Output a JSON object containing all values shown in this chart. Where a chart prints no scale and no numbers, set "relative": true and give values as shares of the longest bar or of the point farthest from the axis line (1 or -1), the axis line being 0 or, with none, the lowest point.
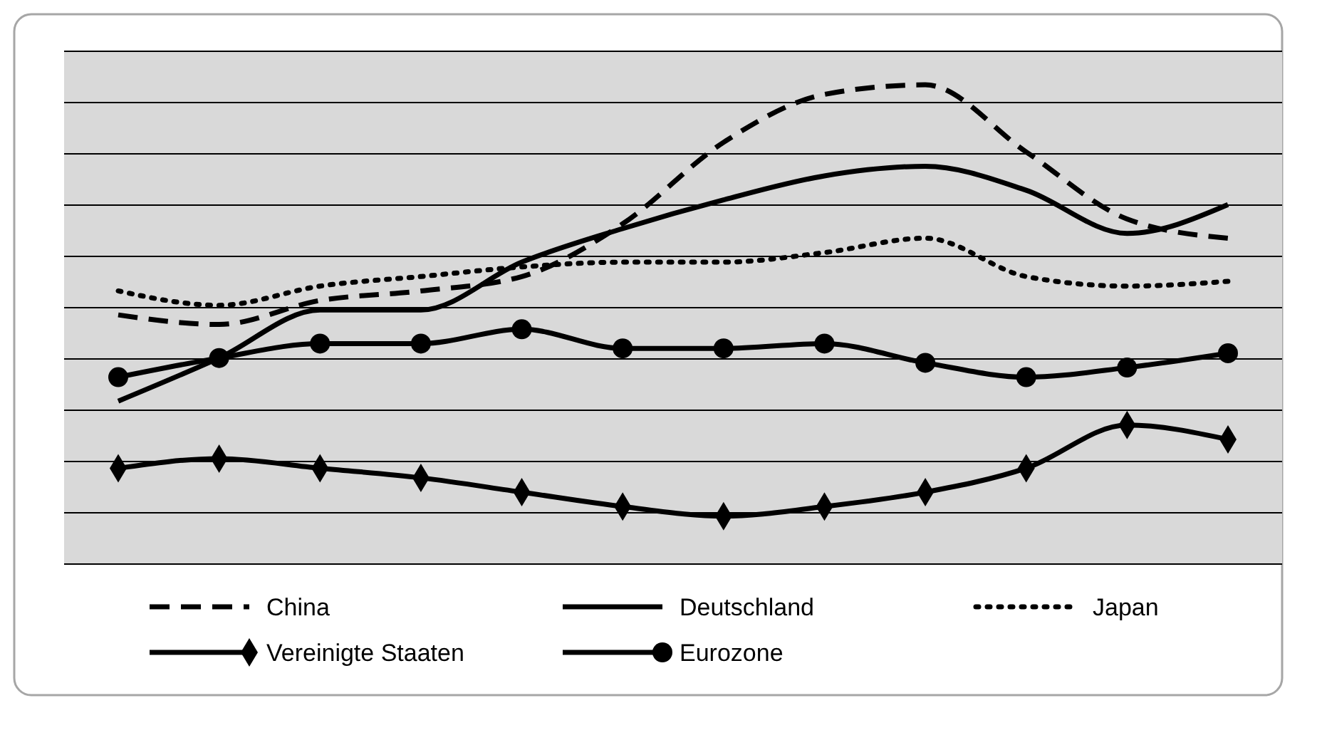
{
  "chart_data": {
    "type": "line",
    "relative": true,
    "grid": true,
    "legend": "bottom",
    "categories": [
      null,
      null,
      null,
      null,
      null,
      null,
      null,
      null,
      null,
      null,
      null,
      null
    ],
    "series": [
      {
        "name": "China",
        "color": "#000000",
        "line_style": "dashed",
        "marker": "none",
        "values": [
          0.52,
          0.5,
          0.55,
          0.57,
          0.6,
          0.71,
          0.88,
          0.98,
          1.0,
          0.86,
          0.72,
          0.68
        ]
      },
      {
        "name": "Deutschland",
        "color": "#000000",
        "line_style": "solid",
        "marker": "none",
        "values": [
          0.34,
          0.43,
          0.53,
          0.53,
          0.63,
          0.7,
          0.76,
          0.81,
          0.83,
          0.78,
          0.69,
          0.75
        ]
      },
      {
        "name": "Japan",
        "color": "#000000",
        "line_style": "dotted",
        "marker": "none",
        "values": [
          0.57,
          0.54,
          0.58,
          0.6,
          0.62,
          0.63,
          0.63,
          0.65,
          0.68,
          0.6,
          0.58,
          0.59
        ]
      },
      {
        "name": "Vereinigte Staaten",
        "color": "#000000",
        "line_style": "solid",
        "marker": "diamond",
        "values": [
          0.2,
          0.22,
          0.2,
          0.18,
          0.15,
          0.12,
          0.1,
          0.12,
          0.15,
          0.2,
          0.29,
          0.26
        ]
      },
      {
        "name": "Eurozone",
        "color": "#000000",
        "line_style": "solid",
        "marker": "circle",
        "values": [
          0.39,
          0.43,
          0.46,
          0.46,
          0.49,
          0.45,
          0.45,
          0.46,
          0.42,
          0.39,
          0.41,
          0.44
        ]
      }
    ]
  }
}
